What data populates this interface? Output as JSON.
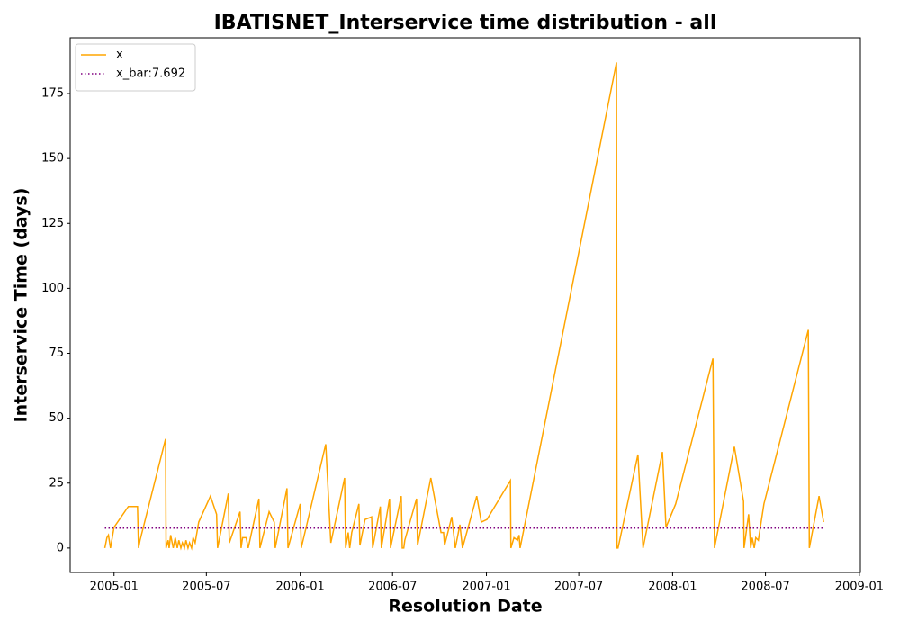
{
  "chart_data": {
    "type": "line",
    "title": "IBATISNET_Interservice time distribution - all",
    "x_label": "Resolution Date",
    "y_label": "Interservice Time (days)",
    "x": [
      "2004-12-14",
      "2004-12-18",
      "2004-12-21",
      "2004-12-25",
      "2005-01-01",
      "2005-01-29",
      "2005-02-16",
      "2005-02-18",
      "2005-02-21",
      "2005-04-12",
      "2005-04-13",
      "2005-04-17",
      "2005-04-19",
      "2005-04-22",
      "2005-04-27",
      "2005-05-01",
      "2005-05-05",
      "2005-05-08",
      "2005-05-12",
      "2005-05-15",
      "2005-05-19",
      "2005-05-22",
      "2005-05-26",
      "2005-05-29",
      "2005-06-02",
      "2005-06-05",
      "2005-06-09",
      "2005-06-16",
      "2005-07-09",
      "2005-07-21",
      "2005-07-23",
      "2005-08-13",
      "2005-08-15",
      "2005-09-05",
      "2005-09-07",
      "2005-09-10",
      "2005-09-17",
      "2005-09-21",
      "2005-10-12",
      "2005-10-14",
      "2005-11-01",
      "2005-11-11",
      "2005-11-13",
      "2005-12-06",
      "2005-12-08",
      "2006-01-01",
      "2006-01-03",
      "2006-02-20",
      "2006-03-02",
      "2006-03-29",
      "2006-03-31",
      "2006-04-05",
      "2006-04-08",
      "2006-04-12",
      "2006-04-26",
      "2006-04-28",
      "2006-05-08",
      "2006-05-21",
      "2006-05-23",
      "2006-06-07",
      "2006-06-09",
      "2006-06-25",
      "2006-06-27",
      "2006-07-18",
      "2006-07-20",
      "2006-07-23",
      "2006-07-25",
      "2006-08-17",
      "2006-08-19",
      "2006-09-14",
      "2006-10-04",
      "2006-10-09",
      "2006-10-11",
      "2006-10-25",
      "2006-11-01",
      "2006-11-10",
      "2006-11-15",
      "2006-12-13",
      "2006-12-22",
      "2007-01-02",
      "2007-02-17",
      "2007-02-18",
      "2007-02-24",
      "2007-03-03",
      "2007-03-06",
      "2007-03-08",
      "2007-09-13",
      "2007-09-14",
      "2007-09-16",
      "2007-10-25",
      "2007-11-04",
      "2007-12-12",
      "2007-12-19",
      "2008-01-07",
      "2008-03-20",
      "2008-03-23",
      "2008-05-01",
      "2008-05-19",
      "2008-05-20",
      "2008-05-29",
      "2008-06-02",
      "2008-06-05",
      "2008-06-09",
      "2008-06-12",
      "2008-06-17",
      "2008-06-28",
      "2008-09-23",
      "2008-09-25",
      "2008-10-14",
      "2008-10-23"
    ],
    "series": [
      {
        "name": "x",
        "color": "#ffa500",
        "values": [
          0,
          4,
          5,
          0,
          8,
          16,
          16,
          0,
          3,
          42,
          0,
          3,
          0,
          5,
          0,
          4,
          0,
          3,
          0,
          2,
          0,
          3,
          0,
          2,
          0,
          4,
          2,
          10,
          20,
          13,
          0,
          21,
          2,
          14,
          0,
          4,
          4,
          0,
          19,
          0,
          14,
          10,
          0,
          23,
          0,
          17,
          0,
          40,
          2,
          27,
          0,
          6,
          0,
          6,
          17,
          1,
          11,
          12,
          0,
          16,
          0,
          19,
          0,
          20,
          0,
          0,
          3,
          19,
          1,
          27,
          6,
          6,
          1,
          12,
          0,
          9,
          0,
          20,
          10,
          11,
          26,
          0,
          4,
          3,
          5,
          0,
          187,
          0,
          0,
          36,
          0,
          37,
          8,
          17,
          73,
          0,
          39,
          18,
          0,
          13,
          0,
          4,
          0,
          4,
          3,
          17,
          84,
          0,
          20,
          10
        ]
      }
    ],
    "mean": {
      "name": "x_bar:7.692",
      "value": 7.692,
      "color": "#800080"
    },
    "xlim": [
      "2004-10-07",
      "2009-01-03"
    ],
    "xticks": [
      {
        "value": "2005-01-01",
        "label": "2005-01"
      },
      {
        "value": "2005-07-01",
        "label": "2005-07"
      },
      {
        "value": "2006-01-01",
        "label": "2006-01"
      },
      {
        "value": "2006-07-01",
        "label": "2006-07"
      },
      {
        "value": "2007-01-01",
        "label": "2007-01"
      },
      {
        "value": "2007-07-01",
        "label": "2007-07"
      },
      {
        "value": "2008-01-01",
        "label": "2008-01"
      },
      {
        "value": "2008-07-01",
        "label": "2008-07"
      },
      {
        "value": "2009-01-01",
        "label": "2009-01"
      }
    ],
    "ylim": [
      -9.4,
      196.5
    ],
    "yticks": [
      0,
      25,
      50,
      75,
      100,
      125,
      150,
      175
    ],
    "legend": "upper left"
  }
}
